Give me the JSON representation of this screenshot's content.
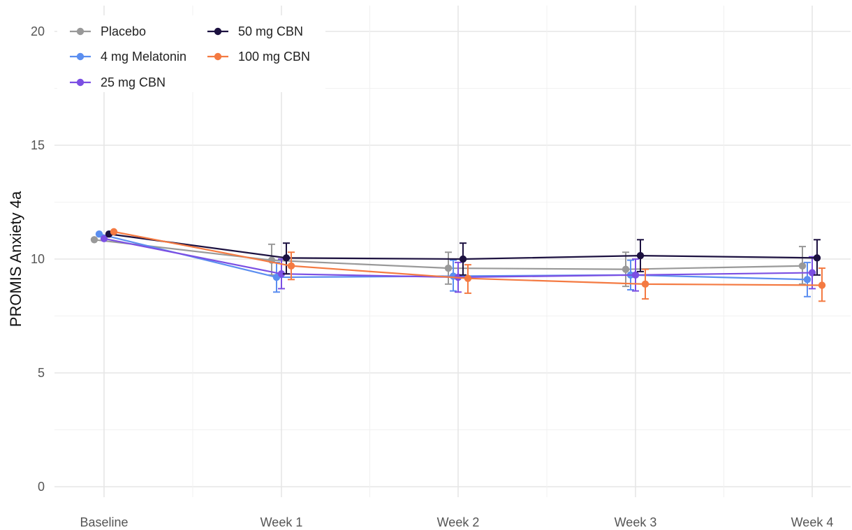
{
  "chart_data": {
    "type": "line",
    "title": "",
    "xlabel": "",
    "ylabel": "PROMIS Anxiety 4a",
    "categories": [
      "Baseline",
      "Week 1",
      "Week 2",
      "Week 3",
      "Week 4"
    ],
    "ylim": [
      0,
      21
    ],
    "yticks": [
      "0",
      "5",
      "10",
      "15",
      "20"
    ],
    "grid": true,
    "legend_position": "top-left",
    "error_bars": true,
    "series": [
      {
        "name": "Placebo",
        "color": "#999999",
        "values": [
          10.85,
          9.95,
          9.6,
          9.55,
          9.7
        ],
        "ci_low": [
          null,
          9.3,
          8.9,
          8.8,
          8.9
        ],
        "ci_high": [
          null,
          10.65,
          10.3,
          10.3,
          10.55
        ]
      },
      {
        "name": "4 mg Melatonin",
        "color": "#5b8ef0",
        "values": [
          11.1,
          9.2,
          9.25,
          9.3,
          9.1
        ],
        "ci_low": [
          null,
          8.55,
          8.6,
          8.65,
          8.35
        ],
        "ci_high": [
          null,
          9.85,
          9.95,
          9.95,
          9.85
        ]
      },
      {
        "name": "25 mg CBN",
        "color": "#7b4fe3",
        "values": [
          10.9,
          9.35,
          9.2,
          9.3,
          9.4
        ],
        "ci_low": [
          null,
          8.7,
          8.55,
          8.6,
          8.7
        ],
        "ci_high": [
          null,
          10.0,
          9.85,
          10.0,
          10.1
        ]
      },
      {
        "name": "50 mg CBN",
        "color": "#1c1140",
        "values": [
          11.1,
          10.05,
          10.0,
          10.15,
          10.05
        ],
        "ci_low": [
          null,
          9.35,
          9.3,
          9.45,
          9.3
        ],
        "ci_high": [
          null,
          10.7,
          10.7,
          10.85,
          10.85
        ]
      },
      {
        "name": "100 mg CBN",
        "color": "#f47a42",
        "values": [
          11.2,
          9.7,
          9.15,
          8.9,
          8.85
        ],
        "ci_low": [
          null,
          9.1,
          8.5,
          8.25,
          8.15
        ],
        "ci_high": [
          null,
          10.3,
          9.75,
          9.55,
          9.6
        ]
      }
    ]
  }
}
